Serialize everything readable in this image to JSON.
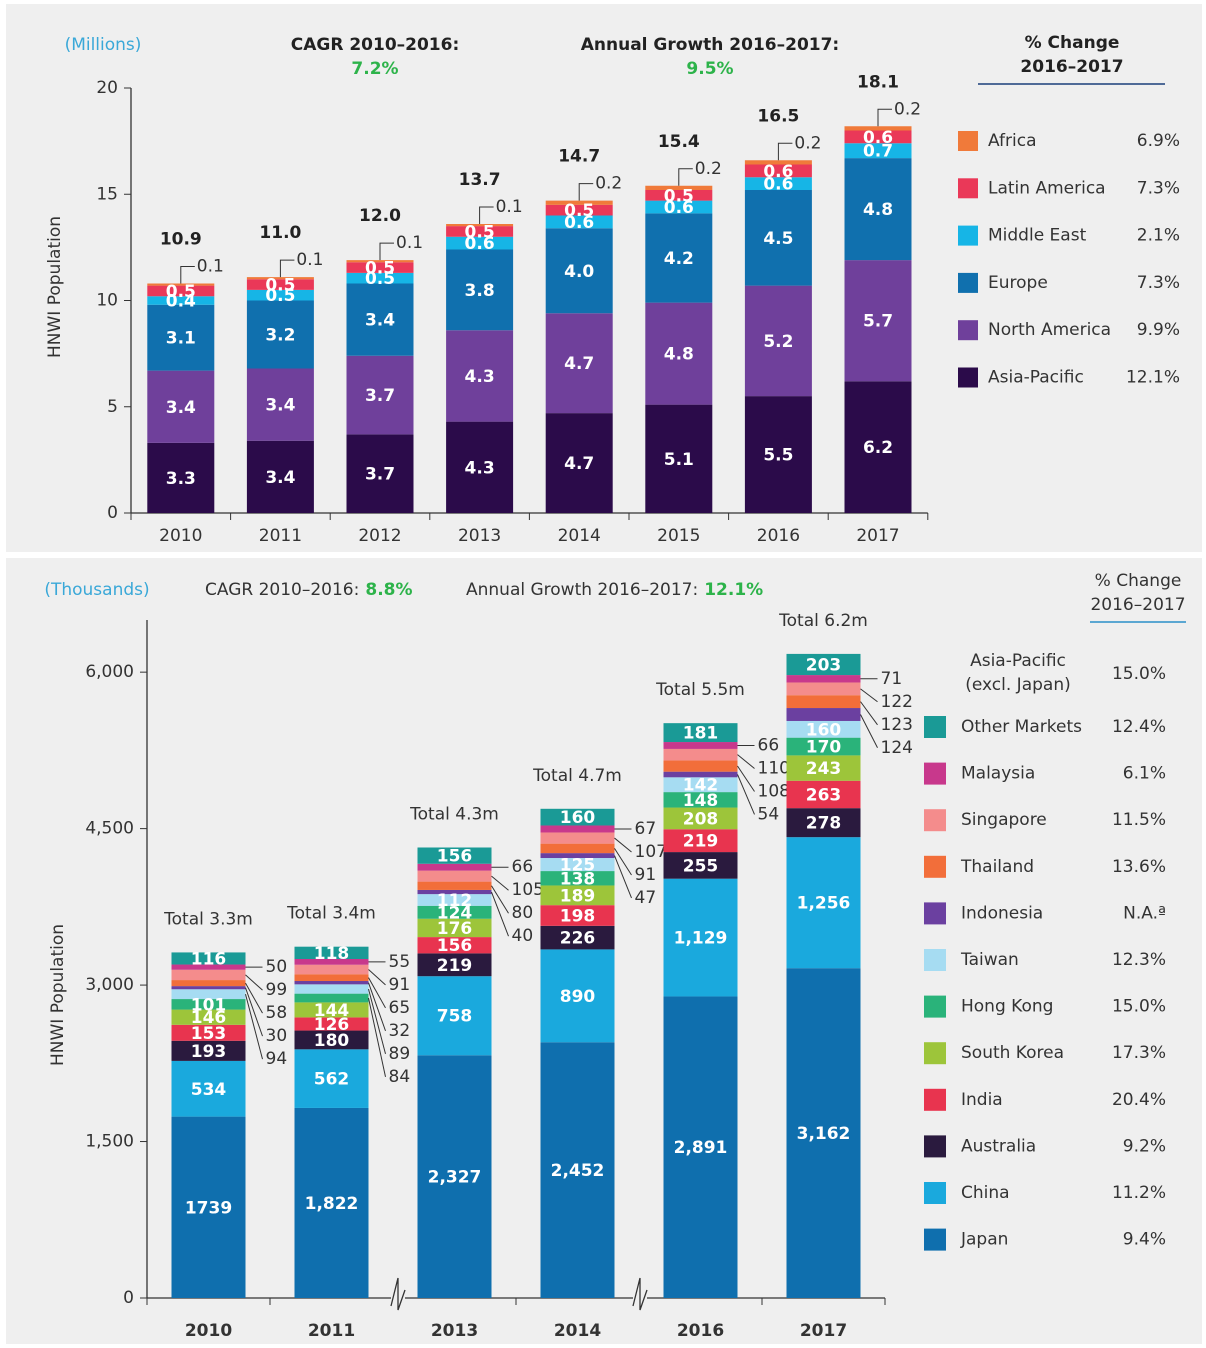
{
  "chart_data": [
    {
      "type": "bar",
      "stacked": true,
      "unit_label": "(Millions)",
      "cagr_label": "CAGR 2010–2016:",
      "cagr_value": "7.2%",
      "growth_label": "Annual Growth 2016–2017:",
      "growth_value": "9.5%",
      "change_header": [
        "% Change",
        "2016–2017"
      ],
      "y_label": "HNWI Population",
      "categories": [
        "2010",
        "2011",
        "2012",
        "2013",
        "2014",
        "2015",
        "2016",
        "2017"
      ],
      "ylim": [
        0,
        20
      ],
      "yticks": [
        0,
        5,
        10,
        15,
        20
      ],
      "series": [
        {
          "name": "Asia-Pacific",
          "color": "#2b0b4a",
          "change": "12.1%",
          "values": [
            3.3,
            3.4,
            3.7,
            4.3,
            4.7,
            5.1,
            5.5,
            6.2
          ]
        },
        {
          "name": "North America",
          "color": "#6f409b",
          "change": "9.9%",
          "values": [
            3.4,
            3.4,
            3.7,
            4.3,
            4.7,
            4.8,
            5.2,
            5.7
          ]
        },
        {
          "name": "Europe",
          "color": "#1070ae",
          "change": "7.3%",
          "values": [
            3.1,
            3.2,
            3.4,
            3.8,
            4.0,
            4.2,
            4.5,
            4.8
          ],
          "value_labels": [
            "3.1",
            "3.2",
            "3.4",
            "3.8",
            "4.0",
            "4.2",
            "4.5",
            "4.8"
          ]
        },
        {
          "name": "Middle East",
          "color": "#16b5e6",
          "change": "2.1%",
          "values": [
            0.4,
            0.5,
            0.5,
            0.6,
            0.6,
            0.6,
            0.6,
            0.7
          ]
        },
        {
          "name": "Latin America",
          "color": "#ea3858",
          "change": "7.3%",
          "values": [
            0.5,
            0.5,
            0.5,
            0.5,
            0.5,
            0.5,
            0.6,
            0.6
          ]
        },
        {
          "name": "Africa",
          "color": "#f07a3a",
          "change": "6.9%",
          "values": [
            0.1,
            0.1,
            0.1,
            0.1,
            0.2,
            0.2,
            0.2,
            0.2
          ]
        }
      ],
      "totals": {
        "values": [
          10.9,
          11.0,
          12.0,
          13.7,
          14.7,
          15.4,
          16.5,
          18.1
        ],
        "value_labels": [
          "10.9",
          "11.0",
          "12.0",
          "13.7",
          "14.7",
          "15.4",
          "16.5",
          "18.1"
        ]
      }
    },
    {
      "type": "bar",
      "stacked": true,
      "unit_label": "(Thousands)",
      "cagr_label": "CAGR 2010–2016:",
      "cagr_value": "8.8%",
      "growth_label": "Annual Growth 2016–2017:",
      "growth_value": "12.1%",
      "change_header": [
        "% Change",
        "2016–2017"
      ],
      "y_label": "HNWI Population",
      "categories": [
        "2010",
        "2011",
        "2013",
        "2014",
        "2016",
        "2017"
      ],
      "ylim": [
        0,
        6500
      ],
      "yticks": [
        0,
        {
          "value": 1500,
          "label": "1,500"
        },
        {
          "value": 3000,
          "label": "3,000"
        },
        {
          "value": 4500,
          "label": "4,500"
        },
        {
          "value": 6000,
          "label": "6,000"
        }
      ],
      "legend_group": [
        "Asia-Pacific",
        "(excl. Japan)"
      ],
      "legend_group_change": "15.0%",
      "series": [
        {
          "name": "Japan",
          "color": "#0f6fae",
          "change": "9.4%",
          "values": [
            1739,
            1822,
            2327,
            2452,
            2891,
            3162
          ],
          "value_labels": [
            "1739",
            "1,822",
            "2,327",
            "2,452",
            "2,891",
            "3,162"
          ]
        },
        {
          "name": "China",
          "color": "#1aa9dd",
          "change": "11.2%",
          "values": [
            534,
            562,
            758,
            890,
            1129,
            1256
          ],
          "value_labels": [
            "534",
            "562",
            "758",
            "890",
            "1,129",
            "1,256"
          ]
        },
        {
          "name": "Australia",
          "color": "#2a1a3e",
          "change": "9.2%",
          "values": [
            193,
            180,
            219,
            226,
            255,
            278
          ]
        },
        {
          "name": "India",
          "color": "#e8344f",
          "change": "20.4%",
          "values": [
            153,
            126,
            156,
            198,
            219,
            263
          ]
        },
        {
          "name": "South Korea",
          "color": "#9dc53a",
          "change": "17.3%",
          "values": [
            146,
            144,
            176,
            189,
            208,
            243
          ]
        },
        {
          "name": "Hong Kong",
          "color": "#2ab37a",
          "change": "15.0%",
          "values": [
            101,
            84,
            124,
            138,
            148,
            170
          ]
        },
        {
          "name": "Taiwan",
          "color": "#a6dcf2",
          "change": "12.3%",
          "values": [
            94,
            89,
            112,
            125,
            142,
            160
          ]
        },
        {
          "name": "Indonesia",
          "color": "#6b40a0",
          "change": "N.A.ª",
          "values": [
            30,
            32,
            40,
            47,
            54,
            124
          ]
        },
        {
          "name": "Thailand",
          "color": "#f26e3a",
          "change": "13.6%",
          "values": [
            58,
            65,
            80,
            91,
            108,
            123
          ]
        },
        {
          "name": "Singapore",
          "color": "#f48c8c",
          "change": "11.5%",
          "values": [
            99,
            91,
            105,
            107,
            110,
            122
          ]
        },
        {
          "name": "Malaysia",
          "color": "#c8388c",
          "change": "6.1%",
          "values": [
            50,
            55,
            66,
            67,
            66,
            71
          ]
        },
        {
          "name": "Other Markets",
          "color": "#1a9a96",
          "change": "12.4%",
          "values": [
            116,
            118,
            156,
            160,
            181,
            203
          ]
        }
      ],
      "totals": [
        "Total 3.3m",
        "Total 3.4m",
        "Total 4.3m",
        "Total 4.7m",
        "Total 5.5m",
        "Total 6.2m"
      ]
    }
  ]
}
